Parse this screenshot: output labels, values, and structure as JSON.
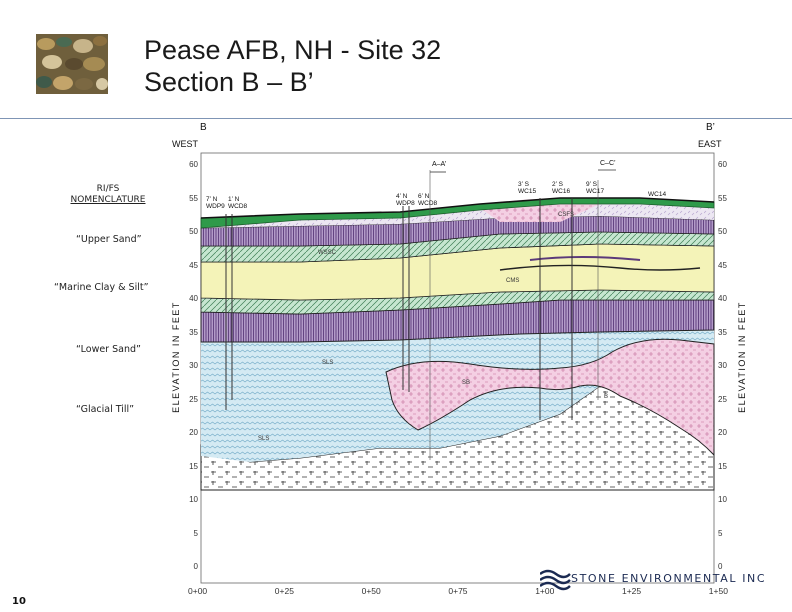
{
  "slide": {
    "title_line1": "Pease AFB, NH -  Site 32",
    "title_line2": "Section B – B’",
    "page_number": "10"
  },
  "thumbnail": {
    "icon": "pebbles-photo-icon"
  },
  "legend": {
    "header": [
      "RI/FS",
      "NOMENCLATURE"
    ],
    "items": [
      "“Upper Sand”",
      "“Marine Clay & Silt”",
      "“Lower Sand”",
      "“Glacial Till”"
    ]
  },
  "section": {
    "left_end": "B",
    "right_end": "B’",
    "left_dir": "WEST",
    "right_dir": "EAST",
    "y_label": "ELEVATION IN FEET",
    "elev_ticks": [
      "60",
      "55",
      "50",
      "45",
      "40",
      "35",
      "30",
      "25",
      "20",
      "15",
      "10",
      "5",
      "0"
    ],
    "x_ticks": [
      "0+00",
      "0+25",
      "0+50",
      "0+75",
      "1+00",
      "1+25",
      "1+50"
    ],
    "callouts": [
      "A–A’",
      "C–C’"
    ],
    "wells": [
      {
        "offset": "7’ N",
        "name": "WDP9"
      },
      {
        "offset": "1’ N",
        "name": "WCD8"
      },
      {
        "offset": "4’ N",
        "name": "WDP8"
      },
      {
        "offset": "6’ N",
        "name": "WCD8"
      },
      {
        "offset": "3’ S",
        "name": "WC15"
      },
      {
        "offset": "2’ S",
        "name": "WC16"
      },
      {
        "offset": "9’ S",
        "name": "WC17"
      },
      {
        "offset": "",
        "name": "WC14"
      }
    ],
    "unit_labels": [
      "CSFS",
      "WSSC",
      "CMS",
      "SLS",
      "SB",
      "B",
      "SLS"
    ],
    "colors": {
      "fill": "#2f9a4a",
      "upper_sand": "#ece7f2",
      "pink": "#f4cfe3",
      "clay": "#f4f3b8",
      "silt": "#c6e6d0",
      "lower_sand": "#d4eaf3",
      "hatch": "#7b5a92",
      "till": "#ffffff"
    }
  },
  "company": {
    "name": "STONE ENVIRONMENTAL INC",
    "accent": "#1b2a52"
  }
}
